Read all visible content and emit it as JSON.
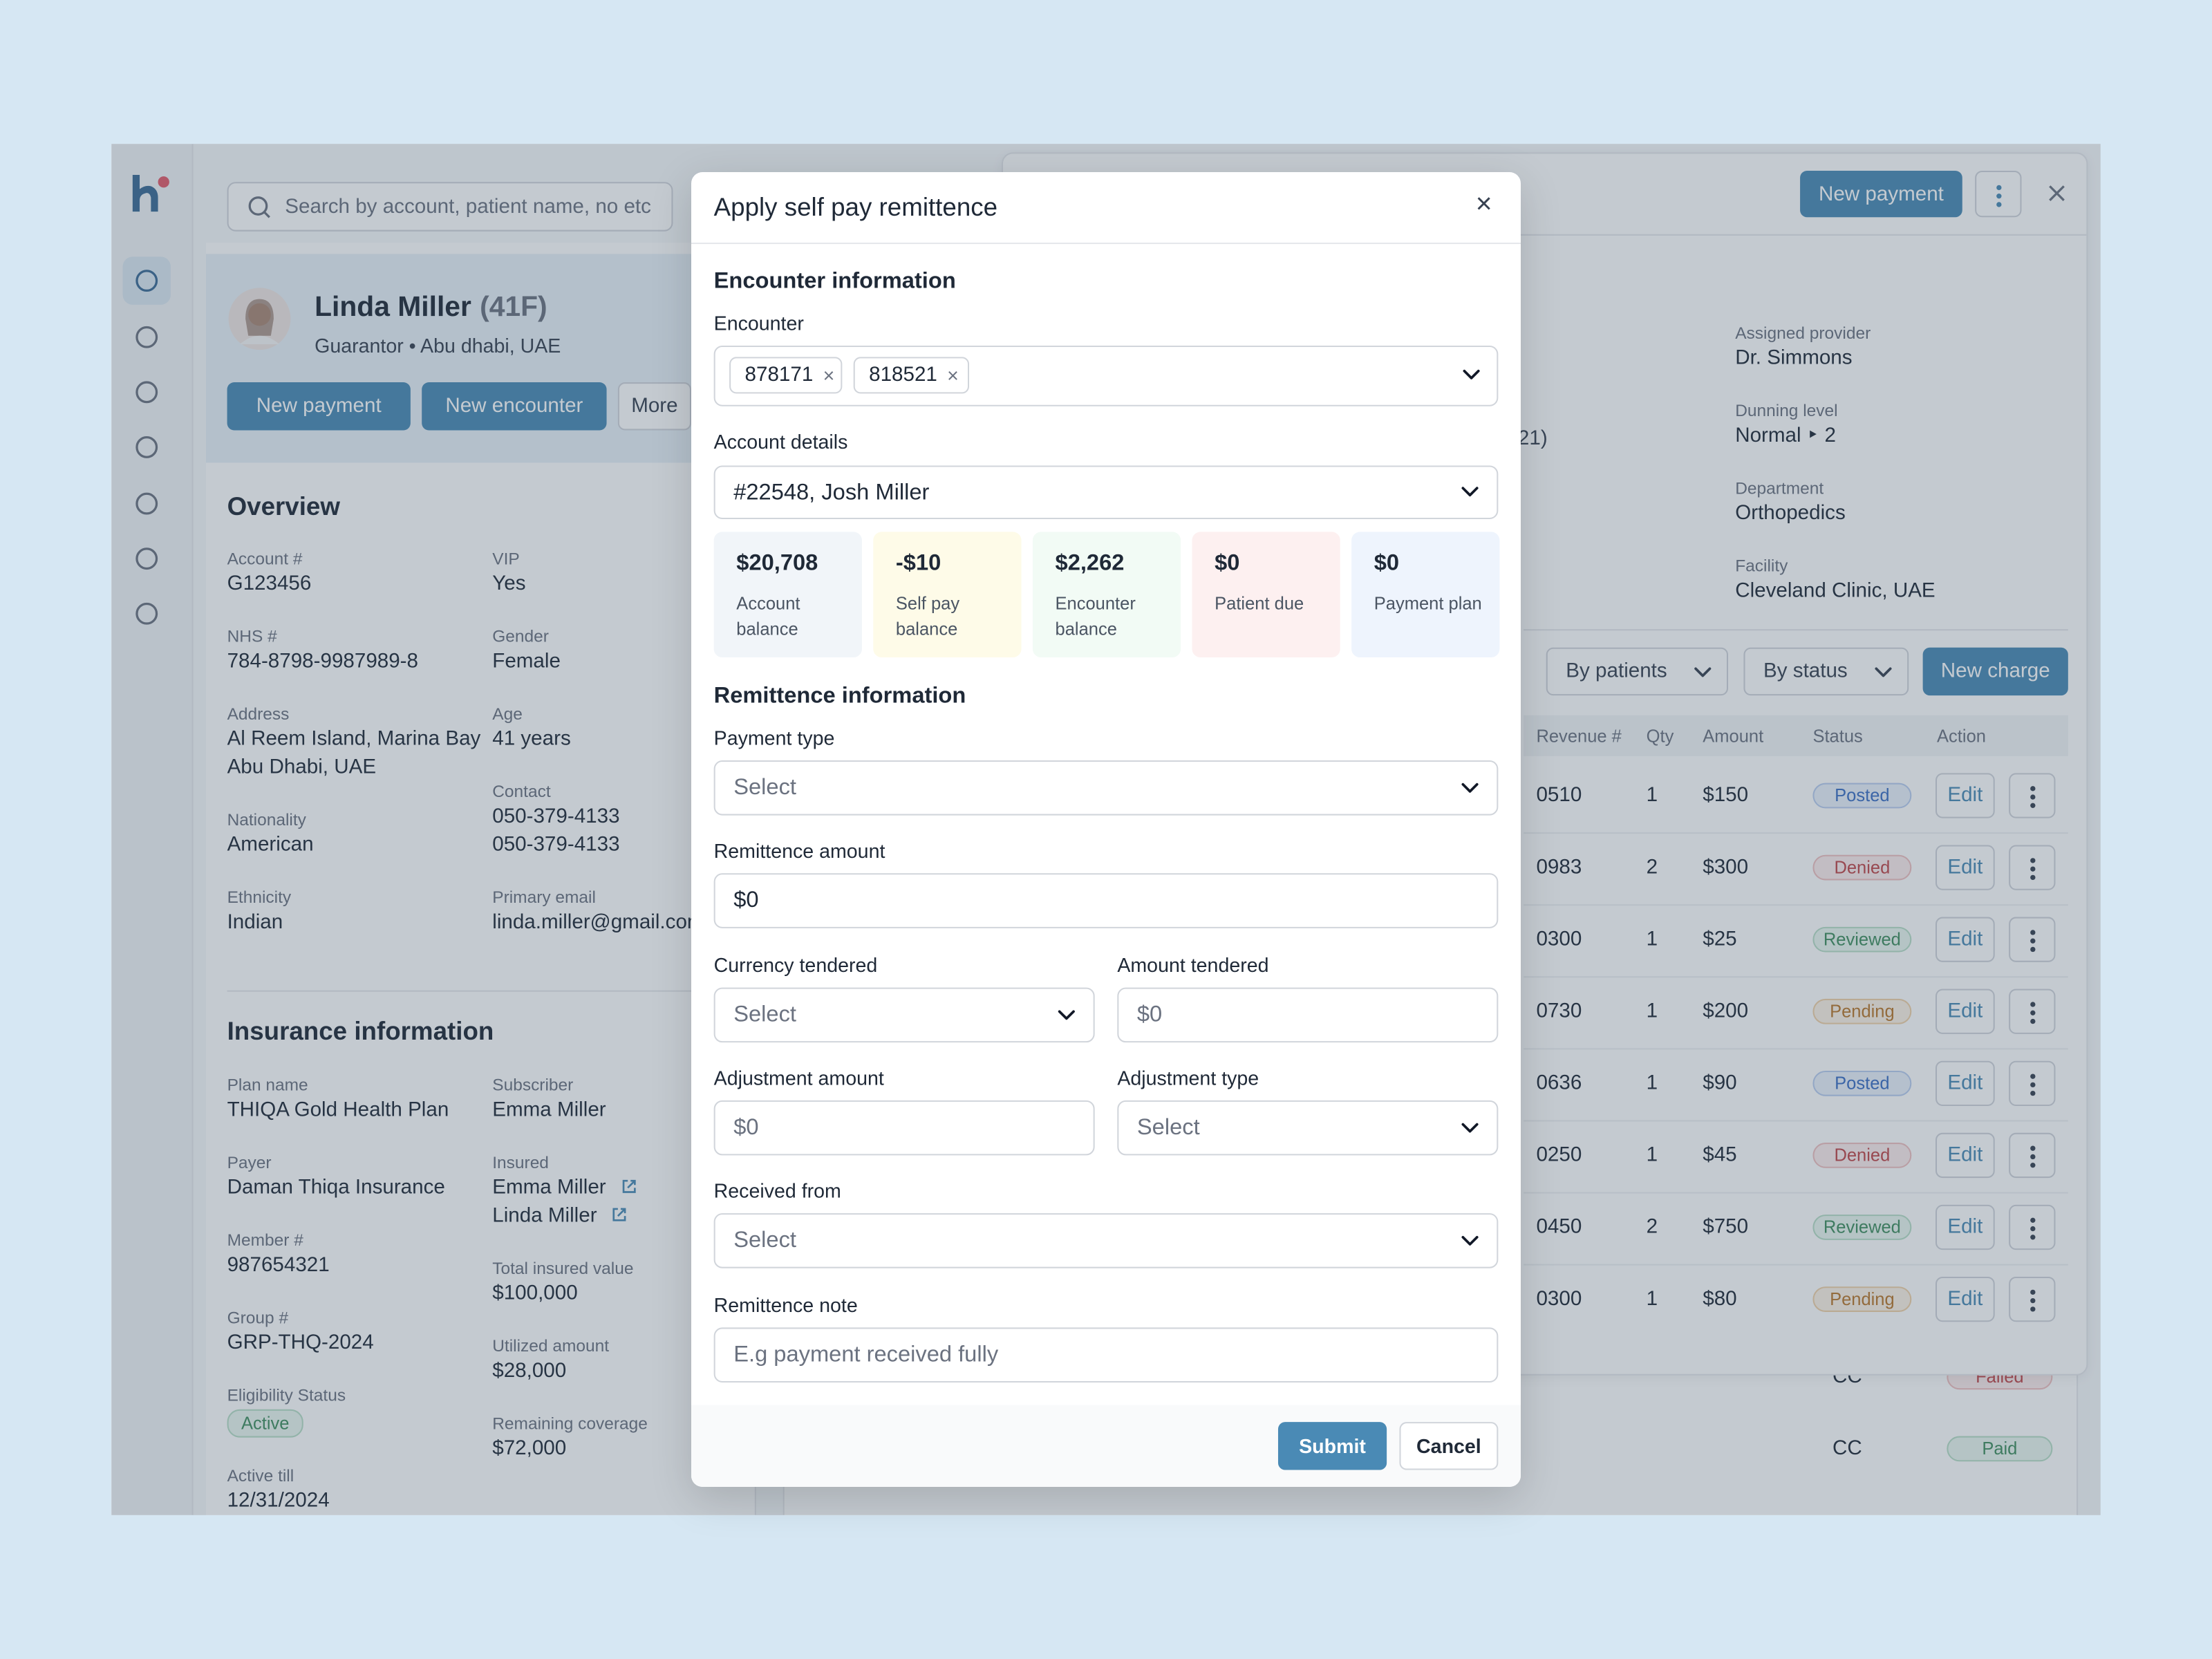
{
  "app": {
    "search_placeholder": "Search by account, patient name, no etc"
  },
  "patient": {
    "name": "Linda Miller",
    "age_sex": "(41F)",
    "subtitle": "Guarantor • Abu dhabi, UAE",
    "actions": [
      "New payment",
      "New encounter",
      "More"
    ]
  },
  "overview": {
    "title": "Overview",
    "columns": [
      [
        {
          "label": "Account #",
          "value": [
            "G123456"
          ]
        },
        {
          "label": "NHS #",
          "value": [
            "784-8798-9987989-8"
          ]
        },
        {
          "label": "Address",
          "value": [
            "Al Reem Island, Marina Bay",
            "Abu Dhabi, UAE"
          ]
        },
        {
          "label": "Nationality",
          "value": [
            "American"
          ]
        },
        {
          "label": "Ethnicity",
          "value": [
            "Indian"
          ]
        }
      ],
      [
        {
          "label": "VIP",
          "value": [
            "Yes"
          ]
        },
        {
          "label": "Gender",
          "value": [
            "Female"
          ]
        },
        {
          "label": "Age",
          "value": [
            "41 years"
          ]
        },
        {
          "label": "Contact",
          "value": [
            "050-379-4133",
            "050-379-4133"
          ]
        },
        {
          "label": "Primary email",
          "value": [
            "linda.miller@gmail.com"
          ]
        }
      ]
    ]
  },
  "insurance": {
    "title": "Insurance information",
    "columns": [
      [
        {
          "label": "Plan name",
          "value": [
            "THIQA Gold Health Plan"
          ]
        },
        {
          "label": "Payer",
          "value": [
            "Daman Thiqa Insurance"
          ]
        },
        {
          "label": "Member #",
          "value": [
            "987654321"
          ]
        },
        {
          "label": "Group #",
          "value": [
            "GRP-THQ-2024"
          ]
        },
        {
          "label": "Eligibility Status",
          "chip": "Active"
        },
        {
          "label": "Active till",
          "value": [
            "12/31/2024"
          ]
        }
      ],
      [
        {
          "label": "Subscriber",
          "value": [
            "Emma Miller"
          ]
        },
        {
          "label": "Insured",
          "value": [
            "Emma Miller",
            "Linda Miller"
          ],
          "link": true
        },
        {
          "label": "Total insured value",
          "value": [
            "$100,000"
          ]
        },
        {
          "label": "Utilized amount",
          "value": [
            "$28,000"
          ]
        },
        {
          "label": "Remaining coverage",
          "value": [
            "$72,000"
          ]
        }
      ]
    ]
  },
  "account_panel": {
    "primary_action": "New payment",
    "partial_text": "21)",
    "fields": [
      {
        "label": "Assigned provider",
        "value": [
          "Dr. Simmons"
        ]
      },
      {
        "label": "Dunning level",
        "value": [
          "Normal ‣ 2"
        ]
      },
      {
        "label": "Department",
        "value": [
          "Orthopedics"
        ]
      },
      {
        "label": "Facility",
        "value": [
          "Cleveland Clinic, UAE"
        ]
      }
    ],
    "filters": [
      "By patients",
      "By status"
    ],
    "new_charge": "New charge",
    "headers": [
      "Revenue #",
      "Qty",
      "Amount",
      "Status",
      "Action"
    ],
    "action_label": "Edit",
    "rows": [
      {
        "revenue": "0510",
        "qty": "1",
        "amount": "$150",
        "status": "Posted",
        "tone": "blue"
      },
      {
        "revenue": "0983",
        "qty": "2",
        "amount": "$300",
        "status": "Denied",
        "tone": "red"
      },
      {
        "revenue": "0300",
        "qty": "1",
        "amount": "$25",
        "status": "Reviewed",
        "tone": "green"
      },
      {
        "revenue": "0730",
        "qty": "1",
        "amount": "$200",
        "status": "Pending",
        "tone": "orange"
      },
      {
        "revenue": "0636",
        "qty": "1",
        "amount": "$90",
        "status": "Posted",
        "tone": "blue"
      },
      {
        "revenue": "0250",
        "qty": "1",
        "amount": "$45",
        "status": "Denied",
        "tone": "red"
      },
      {
        "revenue": "0450",
        "qty": "2",
        "amount": "$750",
        "status": "Reviewed",
        "tone": "green"
      },
      {
        "revenue": "0300",
        "qty": "1",
        "amount": "$80",
        "status": "Pending",
        "tone": "orange"
      }
    ],
    "payments": [
      {
        "method": "CC",
        "status": "Failed",
        "tone": "red"
      },
      {
        "method": "CC",
        "status": "Paid",
        "tone": "green"
      }
    ]
  },
  "modal": {
    "title": "Apply self pay remittence",
    "close": "×",
    "encounter_section": "Encounter information",
    "encounter_label": "Encounter",
    "encounters": [
      "878171",
      "818521"
    ],
    "remove": "×",
    "account_label": "Account details",
    "account_value": "#22548, Josh Miller",
    "balances": [
      {
        "amount": "$20,708",
        "label": "Account balance",
        "color": "#f1f5f9"
      },
      {
        "amount": "-$10",
        "label": "Self pay balance",
        "color": "#fefbe8"
      },
      {
        "amount": "$2,262",
        "label": "Encounter balance",
        "color": "#f2fbf5"
      },
      {
        "amount": "$0",
        "label": "Patient due",
        "color": "#fdf0f0"
      },
      {
        "amount": "$0",
        "label": "Payment plan",
        "color": "#eef4fd"
      }
    ],
    "remittence_section": "Remittence information",
    "fields": [
      {
        "label": "Payment type",
        "value": "Select"
      },
      {
        "label": "Remittence amount",
        "value": "$0"
      },
      {
        "label": "Currency tendered",
        "value": "Select"
      },
      {
        "label": "Amount tendered",
        "value": "$0"
      },
      {
        "label": "Adjustment amount",
        "value": "$0"
      },
      {
        "label": "Adjustment type",
        "value": "Select"
      },
      {
        "label": "Received from",
        "value": "Select"
      },
      {
        "label": "Remittence note",
        "value": "E.g payment received fully"
      }
    ],
    "submit": "Submit",
    "cancel": "Cancel"
  }
}
